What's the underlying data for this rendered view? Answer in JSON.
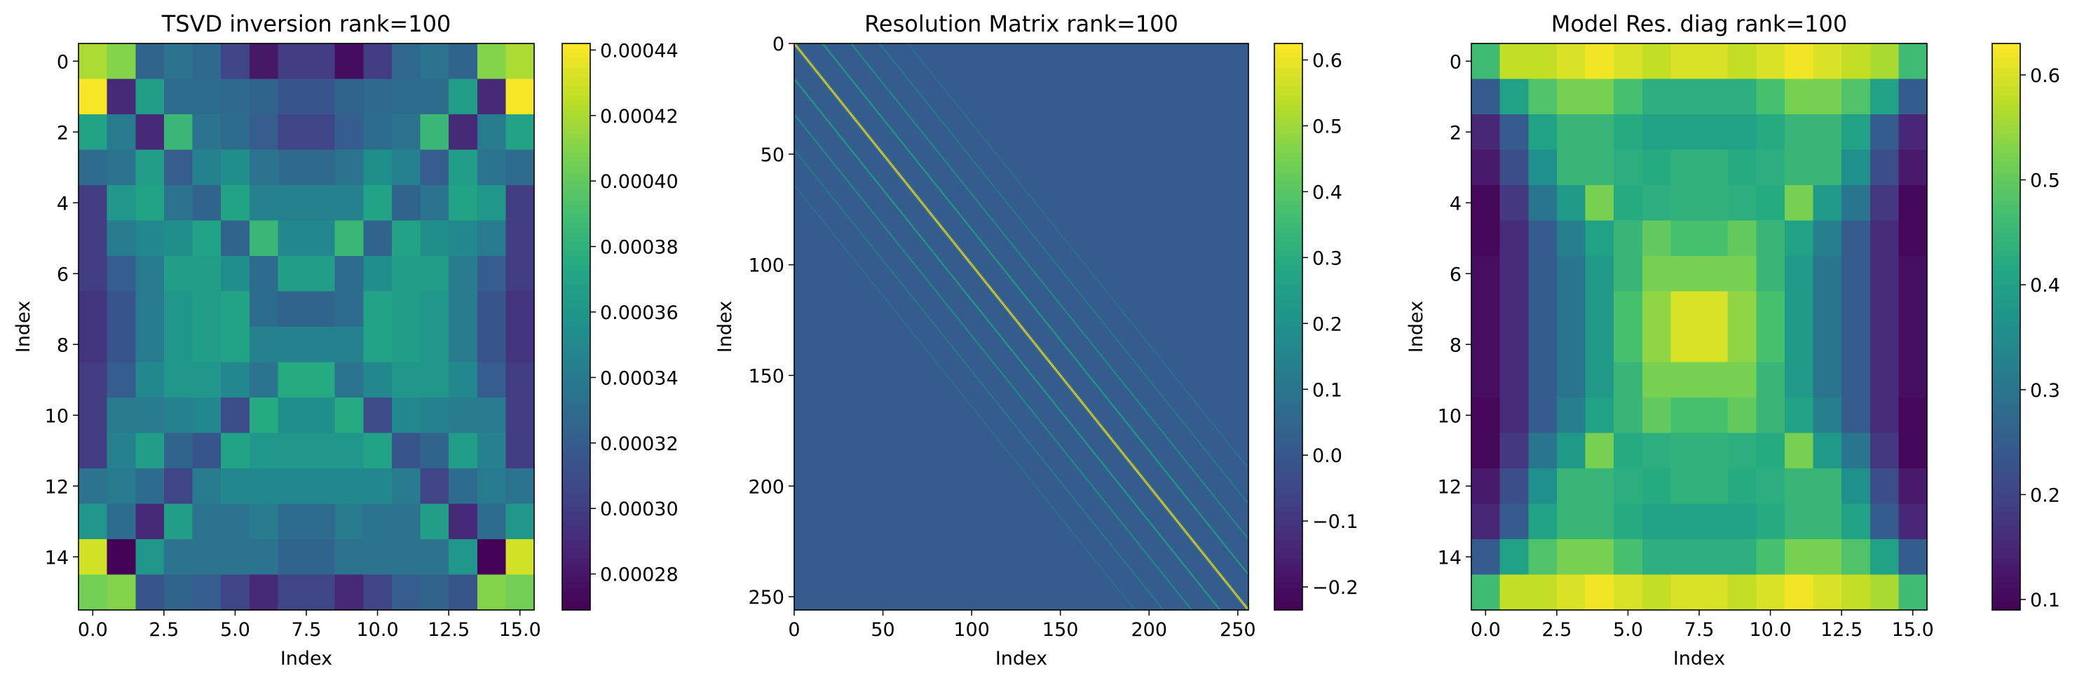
{
  "chart_data": [
    {
      "type": "heatmap",
      "title": "TSVD inversion rank=100",
      "xlabel": "Index",
      "ylabel": "Index",
      "grid_shape": [
        16,
        16
      ],
      "xlim": [
        -0.5,
        15.5
      ],
      "ylim": [
        15.5,
        -0.5
      ],
      "xticks": [
        0.0,
        2.5,
        5.0,
        7.5,
        10.0,
        12.5,
        15.0
      ],
      "xtick_labels": [
        "0.0",
        "2.5",
        "5.0",
        "7.5",
        "10.0",
        "12.5",
        "15.0"
      ],
      "yticks": [
        0,
        2,
        4,
        6,
        8,
        10,
        12,
        14
      ],
      "ytick_labels": [
        "0",
        "2",
        "4",
        "6",
        "8",
        "10",
        "12",
        "14"
      ],
      "colormap": "viridis",
      "vmin": 0.000269,
      "vmax": 0.000442,
      "colorbar_ticks": [
        0.00028,
        0.0003,
        0.00032,
        0.00034,
        0.00036,
        0.00038,
        0.0004,
        0.00042,
        0.00044
      ],
      "colorbar_tick_labels": [
        "0.00028",
        "0.00030",
        "0.00032",
        "0.00034",
        "0.00036",
        "0.00038",
        "0.00040",
        "0.00042",
        "0.00044"
      ],
      "values": [
        [
          0.00042,
          0.00041,
          0.000325,
          0.000335,
          0.000328,
          0.000305,
          0.00028,
          0.0003,
          0.0003,
          0.000275,
          0.0003,
          0.000328,
          0.000335,
          0.000325,
          0.00041,
          0.00042
        ],
        [
          0.00044,
          0.00029,
          0.000365,
          0.00033,
          0.00033,
          0.000328,
          0.000325,
          0.000315,
          0.000315,
          0.000325,
          0.000328,
          0.00033,
          0.00033,
          0.000365,
          0.00029,
          0.00044
        ],
        [
          0.00037,
          0.00034,
          0.00029,
          0.000385,
          0.000335,
          0.00033,
          0.00032,
          0.000305,
          0.000305,
          0.00032,
          0.00033,
          0.000335,
          0.000385,
          0.00029,
          0.00034,
          0.00037
        ],
        [
          0.00033,
          0.000335,
          0.000365,
          0.00032,
          0.000345,
          0.000355,
          0.000335,
          0.000328,
          0.000328,
          0.000335,
          0.000355,
          0.000345,
          0.00032,
          0.000365,
          0.000335,
          0.00033
        ],
        [
          0.0003,
          0.00036,
          0.00037,
          0.000335,
          0.000325,
          0.00037,
          0.000345,
          0.000345,
          0.000345,
          0.000345,
          0.00037,
          0.000325,
          0.000335,
          0.00037,
          0.00036,
          0.0003
        ],
        [
          0.0003,
          0.00034,
          0.00035,
          0.000355,
          0.00037,
          0.000325,
          0.000385,
          0.00035,
          0.00035,
          0.000385,
          0.000325,
          0.00037,
          0.000355,
          0.00035,
          0.00034,
          0.0003
        ],
        [
          0.0003,
          0.00032,
          0.00034,
          0.000365,
          0.000365,
          0.000355,
          0.00033,
          0.000365,
          0.000365,
          0.00033,
          0.000355,
          0.000365,
          0.000365,
          0.00034,
          0.00032,
          0.0003
        ],
        [
          0.000295,
          0.000315,
          0.00034,
          0.00036,
          0.000365,
          0.00037,
          0.00033,
          0.000325,
          0.000325,
          0.00033,
          0.00037,
          0.000365,
          0.00036,
          0.00034,
          0.000315,
          0.000295
        ],
        [
          0.000295,
          0.000315,
          0.00034,
          0.00036,
          0.000365,
          0.00037,
          0.000345,
          0.000345,
          0.000345,
          0.000345,
          0.00037,
          0.000365,
          0.00036,
          0.00034,
          0.000315,
          0.000295
        ],
        [
          0.0003,
          0.00032,
          0.00035,
          0.00036,
          0.00036,
          0.00035,
          0.000335,
          0.000375,
          0.000375,
          0.000335,
          0.00035,
          0.00036,
          0.00036,
          0.00035,
          0.00032,
          0.0003
        ],
        [
          0.0003,
          0.00034,
          0.00034,
          0.000345,
          0.00035,
          0.00031,
          0.000375,
          0.000355,
          0.000355,
          0.000375,
          0.00031,
          0.00035,
          0.000345,
          0.00034,
          0.00034,
          0.0003
        ],
        [
          0.0003,
          0.000345,
          0.000365,
          0.000325,
          0.000315,
          0.00037,
          0.00036,
          0.00036,
          0.00036,
          0.00036,
          0.00037,
          0.000315,
          0.000325,
          0.000365,
          0.000345,
          0.0003
        ],
        [
          0.000335,
          0.00034,
          0.00033,
          0.000305,
          0.00034,
          0.00035,
          0.00035,
          0.00035,
          0.00035,
          0.00035,
          0.00035,
          0.00034,
          0.000305,
          0.00033,
          0.00034,
          0.000335
        ],
        [
          0.00036,
          0.00033,
          0.00029,
          0.000365,
          0.000335,
          0.000335,
          0.00034,
          0.00033,
          0.00033,
          0.00034,
          0.000335,
          0.000335,
          0.000365,
          0.00029,
          0.00033,
          0.00036
        ],
        [
          0.00043,
          0.00027,
          0.00036,
          0.000335,
          0.000335,
          0.000335,
          0.000335,
          0.000325,
          0.000325,
          0.000335,
          0.000335,
          0.000335,
          0.000335,
          0.00036,
          0.00027,
          0.00043
        ],
        [
          0.000405,
          0.00041,
          0.000315,
          0.000325,
          0.00032,
          0.000305,
          0.00029,
          0.000305,
          0.000305,
          0.00029,
          0.000305,
          0.00032,
          0.000325,
          0.000315,
          0.00041,
          0.000405
        ]
      ]
    },
    {
      "type": "heatmap",
      "title": "Resolution Matrix rank=100",
      "xlabel": "Index",
      "ylabel": "Index",
      "grid_shape": [
        256,
        256
      ],
      "xlim": [
        0,
        256
      ],
      "ylim": [
        256,
        0
      ],
      "xticks": [
        0,
        50,
        100,
        150,
        200,
        250
      ],
      "xtick_labels": [
        "0",
        "50",
        "100",
        "150",
        "200",
        "250"
      ],
      "yticks": [
        0,
        50,
        100,
        150,
        200,
        250
      ],
      "ytick_labels": [
        "0",
        "50",
        "100",
        "150",
        "200",
        "250"
      ],
      "colormap": "viridis",
      "vmin": -0.235,
      "vmax": 0.625,
      "colorbar_ticks": [
        -0.2,
        -0.1,
        0.0,
        0.1,
        0.2,
        0.3,
        0.4,
        0.5,
        0.6
      ],
      "colorbar_tick_labels": [
        "−0.2",
        "−0.1",
        "0.0",
        "0.1",
        "0.2",
        "0.3",
        "0.4",
        "0.5",
        "0.6"
      ],
      "background_value": 0.02,
      "main_diagonal_value": 0.6,
      "off_diagonal_bands": [
        {
          "offset": 16,
          "value": 0.25
        },
        {
          "offset": -16,
          "value": 0.25
        },
        {
          "offset": 32,
          "value": 0.18
        },
        {
          "offset": -32,
          "value": 0.18
        },
        {
          "offset": 1,
          "value": 0.12
        },
        {
          "offset": -1,
          "value": 0.12
        },
        {
          "offset": 48,
          "value": 0.12
        },
        {
          "offset": -48,
          "value": 0.12
        },
        {
          "offset": 64,
          "value": 0.08
        },
        {
          "offset": -64,
          "value": 0.08
        }
      ]
    },
    {
      "type": "heatmap",
      "title": "Model Res. diag rank=100",
      "xlabel": "Index",
      "ylabel": "Index",
      "grid_shape": [
        16,
        16
      ],
      "xlim": [
        -0.5,
        15.5
      ],
      "ylim": [
        15.5,
        -0.5
      ],
      "xticks": [
        0.0,
        2.5,
        5.0,
        7.5,
        10.0,
        12.5,
        15.0
      ],
      "xtick_labels": [
        "0.0",
        "2.5",
        "5.0",
        "7.5",
        "10.0",
        "12.5",
        "15.0"
      ],
      "yticks": [
        0,
        2,
        4,
        6,
        8,
        10,
        12,
        14
      ],
      "ytick_labels": [
        "0",
        "2",
        "4",
        "6",
        "8",
        "10",
        "12",
        "14"
      ],
      "colormap": "viridis",
      "vmin": 0.09,
      "vmax": 0.63,
      "colorbar_ticks": [
        0.1,
        0.2,
        0.3,
        0.4,
        0.5,
        0.6
      ],
      "colorbar_tick_labels": [
        "0.1",
        "0.2",
        "0.3",
        "0.4",
        "0.5",
        "0.6"
      ],
      "values": [
        [
          0.46,
          0.58,
          0.58,
          0.6,
          0.62,
          0.6,
          0.58,
          0.6,
          0.6,
          0.58,
          0.6,
          0.62,
          0.6,
          0.58,
          0.56,
          0.46
        ],
        [
          0.25,
          0.4,
          0.48,
          0.52,
          0.52,
          0.47,
          0.43,
          0.43,
          0.43,
          0.43,
          0.47,
          0.52,
          0.52,
          0.48,
          0.4,
          0.25
        ],
        [
          0.15,
          0.25,
          0.4,
          0.45,
          0.45,
          0.42,
          0.4,
          0.4,
          0.4,
          0.4,
          0.42,
          0.45,
          0.45,
          0.4,
          0.25,
          0.15
        ],
        [
          0.13,
          0.22,
          0.36,
          0.45,
          0.45,
          0.43,
          0.42,
          0.44,
          0.44,
          0.42,
          0.43,
          0.45,
          0.45,
          0.36,
          0.22,
          0.13
        ],
        [
          0.1,
          0.18,
          0.3,
          0.38,
          0.52,
          0.42,
          0.43,
          0.44,
          0.44,
          0.43,
          0.42,
          0.52,
          0.38,
          0.3,
          0.18,
          0.1
        ],
        [
          0.1,
          0.16,
          0.25,
          0.32,
          0.4,
          0.45,
          0.5,
          0.47,
          0.47,
          0.5,
          0.45,
          0.4,
          0.32,
          0.25,
          0.16,
          0.1
        ],
        [
          0.11,
          0.16,
          0.25,
          0.3,
          0.38,
          0.45,
          0.52,
          0.52,
          0.52,
          0.52,
          0.45,
          0.38,
          0.3,
          0.25,
          0.16,
          0.11
        ],
        [
          0.11,
          0.16,
          0.25,
          0.3,
          0.38,
          0.47,
          0.54,
          0.6,
          0.6,
          0.54,
          0.47,
          0.38,
          0.3,
          0.25,
          0.16,
          0.11
        ],
        [
          0.11,
          0.16,
          0.25,
          0.3,
          0.38,
          0.47,
          0.54,
          0.6,
          0.6,
          0.54,
          0.47,
          0.38,
          0.3,
          0.25,
          0.16,
          0.11
        ],
        [
          0.11,
          0.16,
          0.25,
          0.3,
          0.38,
          0.45,
          0.52,
          0.52,
          0.52,
          0.52,
          0.45,
          0.38,
          0.3,
          0.25,
          0.16,
          0.11
        ],
        [
          0.1,
          0.16,
          0.25,
          0.32,
          0.4,
          0.45,
          0.5,
          0.47,
          0.47,
          0.5,
          0.45,
          0.4,
          0.32,
          0.25,
          0.16,
          0.1
        ],
        [
          0.1,
          0.18,
          0.3,
          0.38,
          0.52,
          0.42,
          0.43,
          0.44,
          0.44,
          0.43,
          0.42,
          0.52,
          0.38,
          0.3,
          0.18,
          0.1
        ],
        [
          0.13,
          0.22,
          0.36,
          0.45,
          0.45,
          0.43,
          0.42,
          0.44,
          0.44,
          0.42,
          0.43,
          0.45,
          0.45,
          0.36,
          0.22,
          0.13
        ],
        [
          0.15,
          0.25,
          0.4,
          0.45,
          0.45,
          0.42,
          0.4,
          0.4,
          0.4,
          0.4,
          0.42,
          0.45,
          0.45,
          0.4,
          0.25,
          0.15
        ],
        [
          0.25,
          0.4,
          0.48,
          0.52,
          0.52,
          0.47,
          0.43,
          0.43,
          0.43,
          0.43,
          0.47,
          0.52,
          0.52,
          0.48,
          0.4,
          0.25
        ],
        [
          0.46,
          0.58,
          0.58,
          0.6,
          0.62,
          0.6,
          0.58,
          0.6,
          0.6,
          0.58,
          0.6,
          0.62,
          0.6,
          0.58,
          0.56,
          0.46
        ]
      ]
    }
  ]
}
